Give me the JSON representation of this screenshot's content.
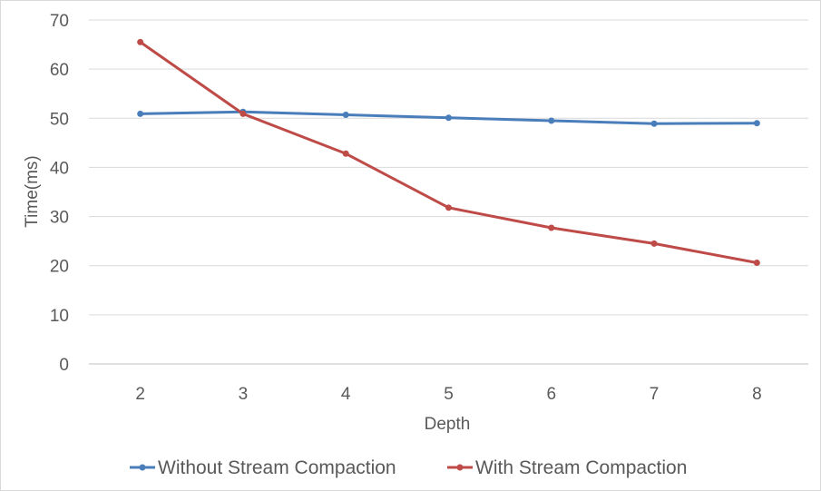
{
  "chart_data": {
    "type": "line",
    "title": "",
    "xlabel": "Depth",
    "ylabel": "Time(ms)",
    "categories": [
      "2",
      "3",
      "4",
      "5",
      "6",
      "7",
      "8"
    ],
    "ylim": [
      0,
      70
    ],
    "yticks": [
      0,
      10,
      20,
      30,
      40,
      50,
      60,
      70
    ],
    "grid": true,
    "legend_position": "bottom",
    "series": [
      {
        "name": "Without Stream Compaction",
        "color": "#4a7ebb",
        "values": [
          50.9,
          51.3,
          50.7,
          50.1,
          49.5,
          48.9,
          49.0
        ]
      },
      {
        "name": "With Stream Compaction",
        "color": "#be4b48",
        "values": [
          65.5,
          50.9,
          42.8,
          31.8,
          27.7,
          24.5,
          20.6
        ]
      }
    ]
  }
}
